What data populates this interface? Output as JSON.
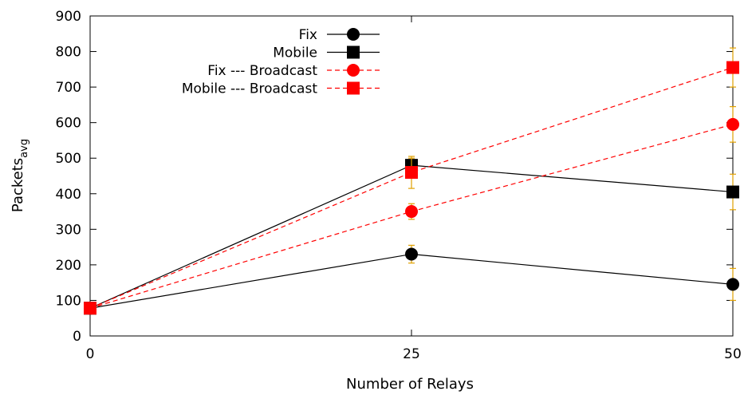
{
  "chart_data": {
    "type": "line",
    "xlabel": "Number of Relays",
    "ylabel": "Packets",
    "ylabel_subscript": "avg",
    "xlim": [
      0,
      50
    ],
    "ylim": [
      0,
      900
    ],
    "x_ticks": [
      0,
      25,
      50
    ],
    "y_ticks": [
      0,
      100,
      200,
      300,
      400,
      500,
      600,
      700,
      800,
      900
    ],
    "grid": false,
    "legend_position": "top-left",
    "series": [
      {
        "name": "Fix",
        "marker": "circle",
        "line_style": "solid",
        "color": "#000000",
        "x": [
          0,
          25,
          50
        ],
        "y": [
          78,
          230,
          145
        ],
        "err": [
          10,
          25,
          45
        ]
      },
      {
        "name": "Mobile",
        "marker": "square",
        "line_style": "solid",
        "color": "#000000",
        "x": [
          0,
          25,
          50
        ],
        "y": [
          78,
          480,
          405
        ],
        "err": [
          10,
          20,
          50
        ]
      },
      {
        "name": "Fix --- Broadcast",
        "marker": "circle",
        "line_style": "dashed",
        "color": "#ff0000",
        "x": [
          0,
          25,
          50
        ],
        "y": [
          78,
          350,
          595
        ],
        "err": [
          10,
          22,
          50
        ]
      },
      {
        "name": "Mobile --- Broadcast",
        "marker": "square",
        "line_style": "dashed",
        "color": "#ff0000",
        "x": [
          0,
          25,
          50
        ],
        "y": [
          78,
          460,
          755
        ],
        "err": [
          10,
          45,
          55
        ]
      }
    ],
    "error_bar_color": "#e0a000"
  }
}
